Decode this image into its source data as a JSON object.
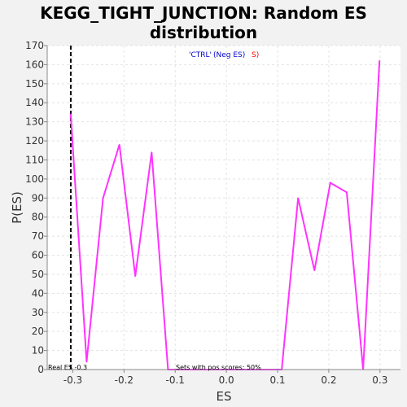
{
  "chart_data": {
    "type": "line",
    "title": [
      "KEGG_TIGHT_JUNCTION: Random ES",
      "distribution"
    ],
    "xlabel": "ES",
    "ylabel": "P(ES)",
    "xlim": [
      -0.35,
      0.34
    ],
    "ylim": [
      0,
      170
    ],
    "x_ticks": [
      -0.3,
      -0.2,
      -0.1,
      0.0,
      0.1,
      0.2,
      0.3
    ],
    "x_tick_labels": [
      "-0.3",
      "-0.2",
      "-0.1",
      "0.0",
      "0.1",
      "0.2",
      "0.3"
    ],
    "y_ticks": [
      0,
      10,
      20,
      30,
      40,
      50,
      60,
      70,
      80,
      90,
      100,
      110,
      120,
      130,
      140,
      150,
      160,
      170
    ],
    "grid": true,
    "series": [
      {
        "color": "#ff33ff",
        "x": [
          -0.304,
          -0.273,
          -0.241,
          -0.209,
          -0.178,
          -0.146,
          -0.114,
          -0.082,
          -0.051,
          -0.019,
          0.013,
          0.044,
          0.076,
          0.108,
          0.14,
          0.172,
          0.203,
          0.235,
          0.267,
          0.299
        ],
        "y": [
          134,
          4,
          90,
          118,
          49,
          114,
          0,
          0,
          0,
          0,
          0,
          0,
          0,
          0,
          90,
          52,
          98,
          93,
          0,
          162
        ]
      }
    ],
    "real_es": {
      "value": -0.304,
      "label": "Real ES -0.3"
    },
    "annotations": {
      "legend_ctrl": "'CTRL'",
      "legend_neg": " (Neg ES)",
      "legend_s": "S)",
      "pos_scores": "Sets with pos scores: 50%"
    },
    "colors": {
      "plot_bg": "#ffffff",
      "page_bg": "#f2f2f2",
      "line": "#ff33ff",
      "legend_blue": "#0000cc",
      "legend_red": "#ff0000"
    }
  }
}
